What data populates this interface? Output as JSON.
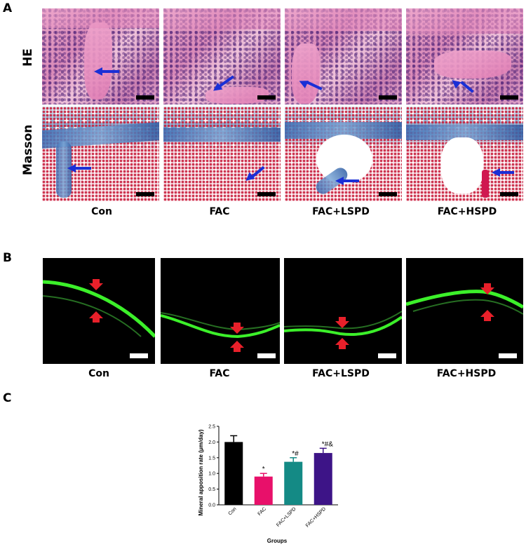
{
  "panel_a": {
    "letter": "A",
    "rows": [
      "HE",
      "Masson"
    ],
    "columns": [
      "Con",
      "FAC",
      "FAC+LSPD",
      "FAC+HSPD"
    ]
  },
  "panel_b": {
    "letter": "B",
    "columns": [
      "Con",
      "FAC",
      "FAC+LSPD",
      "FAC+HSPD"
    ]
  },
  "panel_c": {
    "letter": "C"
  },
  "colors": {
    "arrow_blue": "#1a2fd6",
    "arrow_red": "#e8202a",
    "fluor_green": "#3cf02a",
    "bar_con": "#000000",
    "bar_fac": "#e8106a",
    "bar_lspd": "#148a85",
    "bar_hspd": "#3d1487"
  },
  "chart_data": {
    "type": "bar",
    "title": "",
    "xlabel": "Groups",
    "ylabel": "Mineral apposition rate (μm/day)",
    "ylim": [
      0,
      2.5
    ],
    "yticks": [
      "0.0",
      "0.5",
      "1.0",
      "1.5",
      "2.0",
      "2.5"
    ],
    "categories": [
      "Con",
      "FAC",
      "FAC+LSPD",
      "FAC+HSPD"
    ],
    "values": [
      2.0,
      0.9,
      1.37,
      1.65
    ],
    "errors": [
      0.2,
      0.1,
      0.13,
      0.15
    ],
    "annotations": [
      "",
      "*",
      "*#",
      "*#&"
    ],
    "legend": "none"
  }
}
